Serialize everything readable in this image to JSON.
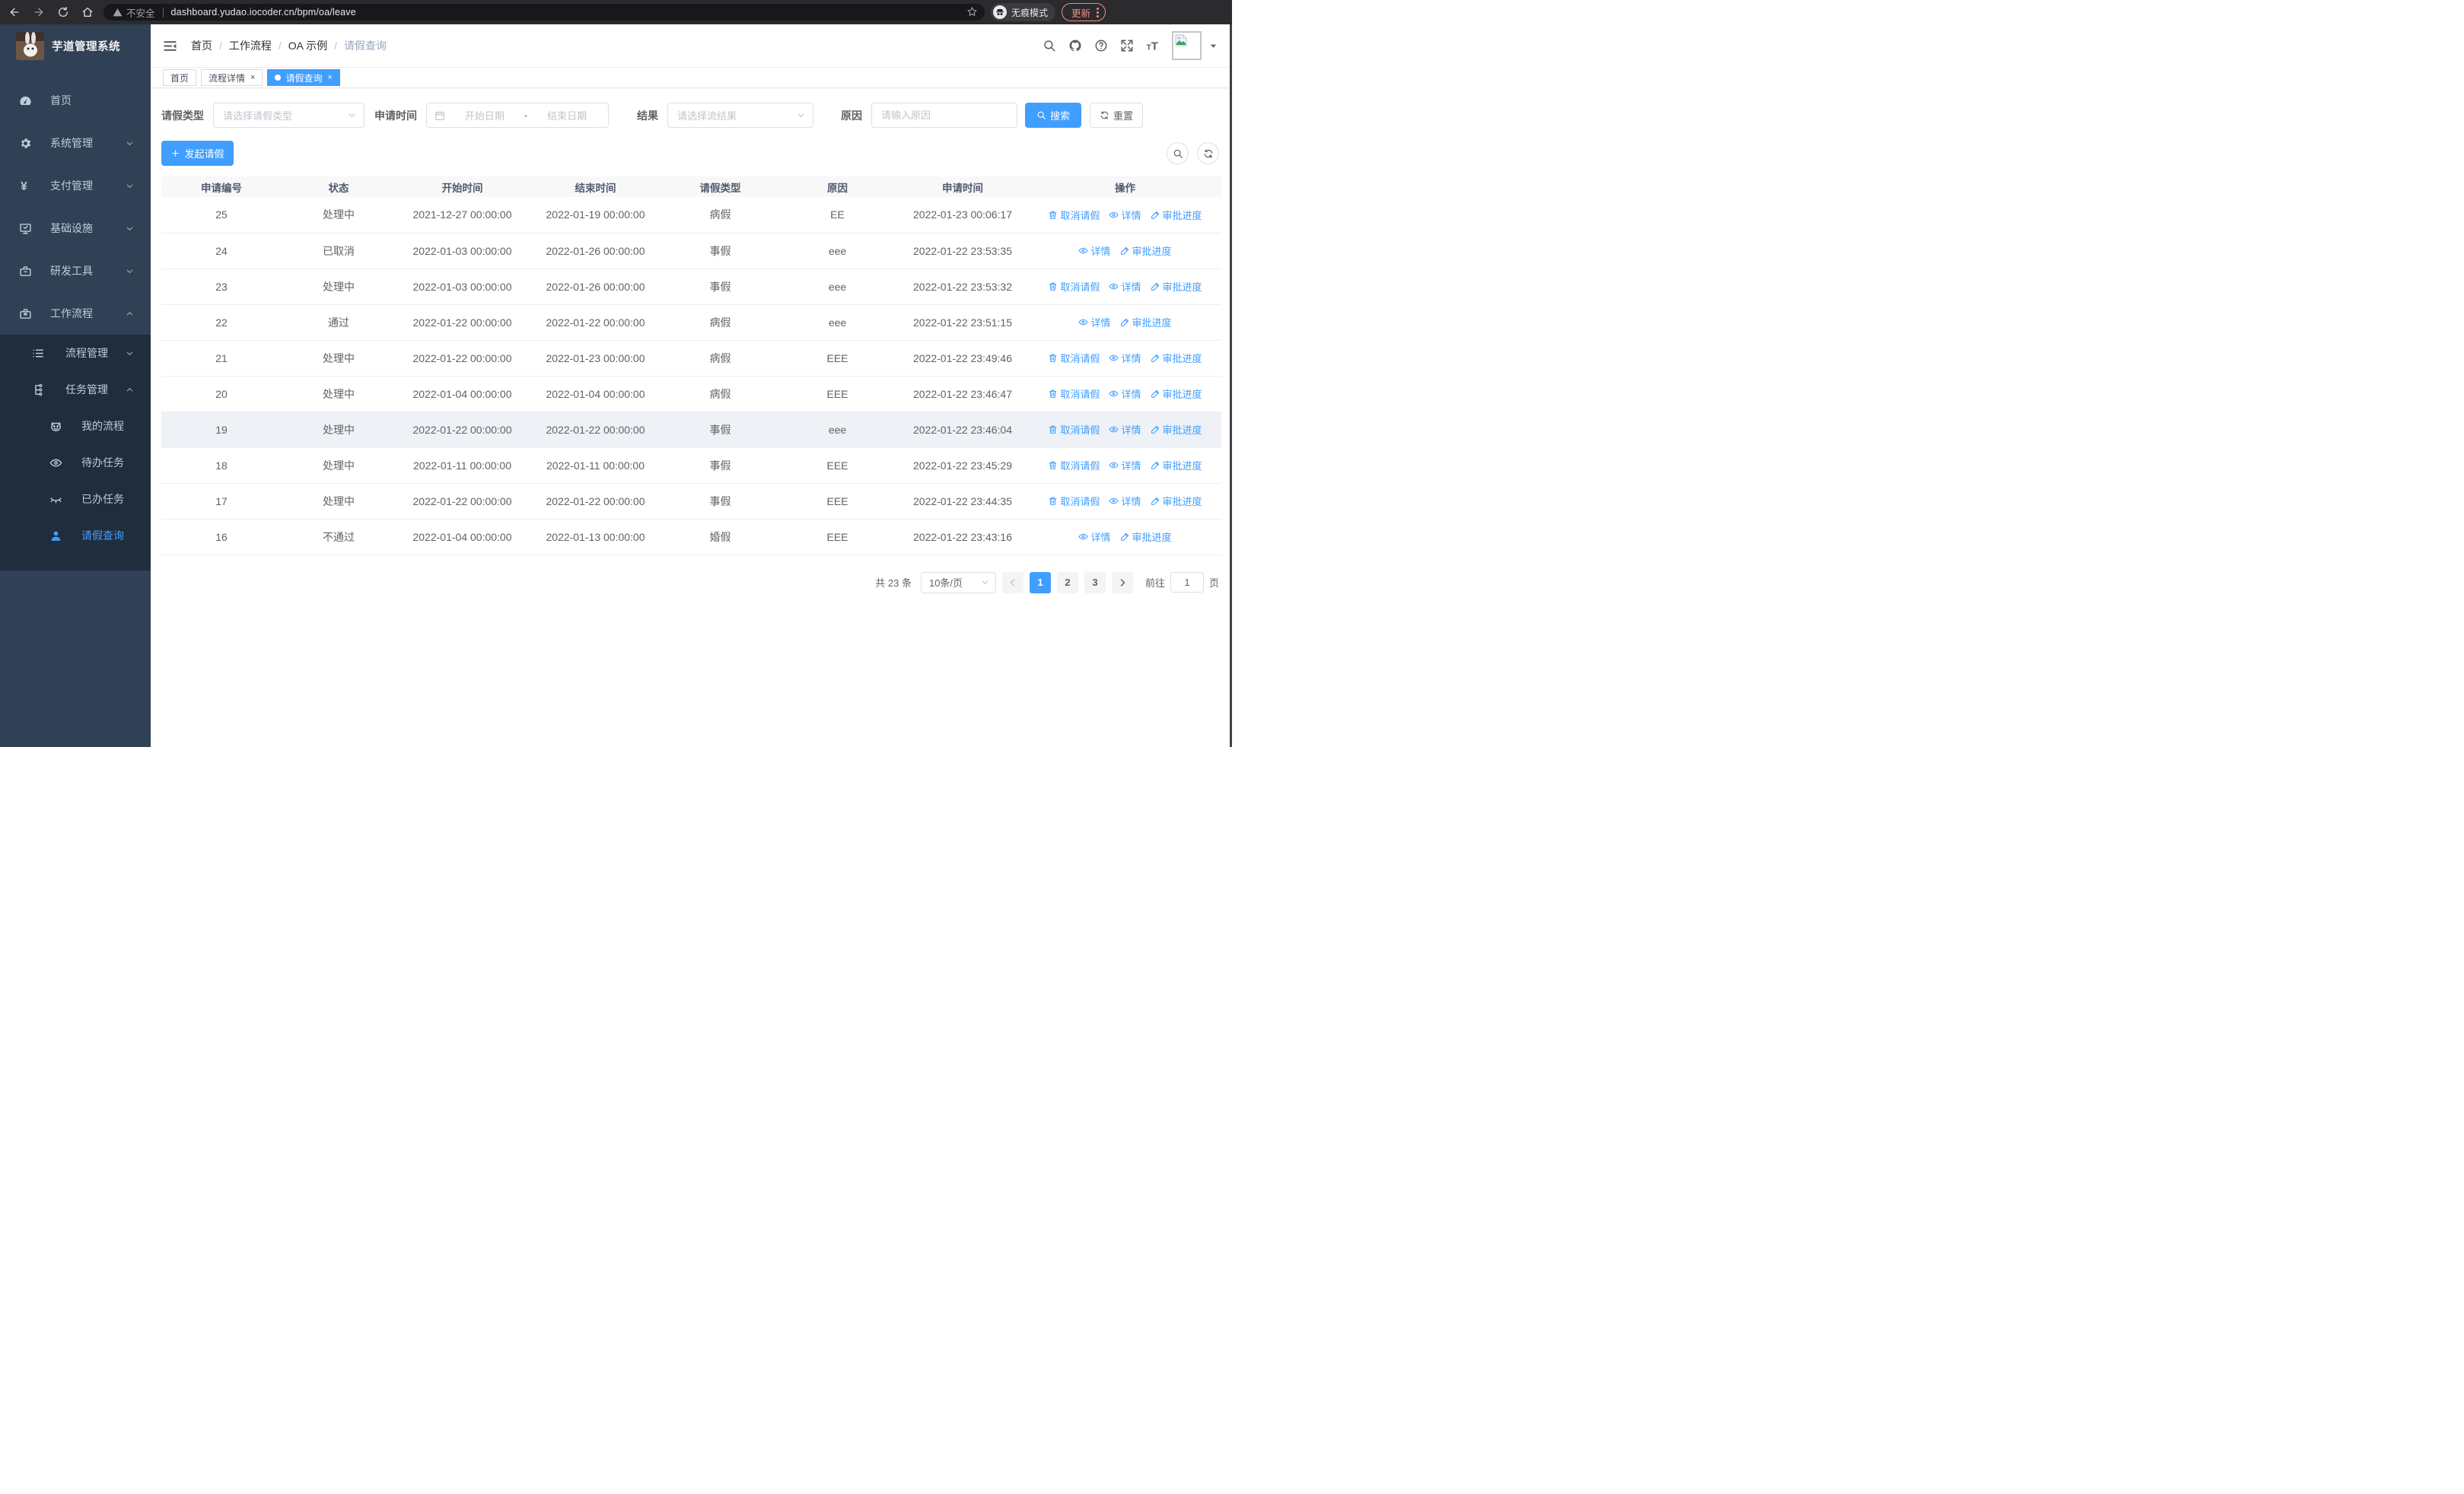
{
  "browser": {
    "security_label": "不安全",
    "url": "dashboard.yudao.iocoder.cn/bpm/oa/leave",
    "incognito_label": "无痕模式",
    "update_label": "更新"
  },
  "sidebar": {
    "title": "芋道管理系统",
    "items": [
      {
        "label": "首页"
      },
      {
        "label": "系统管理"
      },
      {
        "label": "支付管理"
      },
      {
        "label": "基础设施"
      },
      {
        "label": "研发工具"
      },
      {
        "label": "工作流程"
      },
      {
        "label": "流程管理"
      },
      {
        "label": "任务管理"
      },
      {
        "label": "我的流程"
      },
      {
        "label": "待办任务"
      },
      {
        "label": "已办任务"
      },
      {
        "label": "请假查询"
      }
    ]
  },
  "breadcrumb": {
    "separator": "/",
    "items": [
      "首页",
      "工作流程",
      "OA 示例",
      "请假查询"
    ]
  },
  "tabs": [
    {
      "label": "首页"
    },
    {
      "label": "流程详情"
    },
    {
      "label": "请假查询"
    }
  ],
  "tab_close": "×",
  "filters": {
    "leave_type_label": "请假类型",
    "leave_type_placeholder": "请选择请假类型",
    "apply_time_label": "申请时间",
    "start_placeholder": "开始日期",
    "range_separator": "-",
    "end_placeholder": "结束日期",
    "result_label": "结果",
    "result_placeholder": "请选择流结果",
    "reason_label": "原因",
    "reason_placeholder": "请输入原因",
    "search_label": "搜索",
    "reset_label": "重置"
  },
  "toolbar": {
    "create_label": "发起请假"
  },
  "table": {
    "headers": [
      "申请编号",
      "状态",
      "开始时间",
      "结束时间",
      "请假类型",
      "原因",
      "申请时间",
      "操作"
    ],
    "action_labels": {
      "cancel": "取消请假",
      "detail": "详情",
      "progress": "审批进度"
    },
    "rows": [
      {
        "id": "25",
        "status": "处理中",
        "start": "2021-12-27 00:00:00",
        "end": "2022-01-19 00:00:00",
        "type": "病假",
        "reason": "EE",
        "time": "2022-01-23 00:06:17",
        "actions": [
          "cancel",
          "detail",
          "progress"
        ],
        "highlight": false
      },
      {
        "id": "24",
        "status": "已取消",
        "start": "2022-01-03 00:00:00",
        "end": "2022-01-26 00:00:00",
        "type": "事假",
        "reason": "eee",
        "time": "2022-01-22 23:53:35",
        "actions": [
          "detail",
          "progress"
        ],
        "highlight": false
      },
      {
        "id": "23",
        "status": "处理中",
        "start": "2022-01-03 00:00:00",
        "end": "2022-01-26 00:00:00",
        "type": "事假",
        "reason": "eee",
        "time": "2022-01-22 23:53:32",
        "actions": [
          "cancel",
          "detail",
          "progress"
        ],
        "highlight": false
      },
      {
        "id": "22",
        "status": "通过",
        "start": "2022-01-22 00:00:00",
        "end": "2022-01-22 00:00:00",
        "type": "病假",
        "reason": "eee",
        "time": "2022-01-22 23:51:15",
        "actions": [
          "detail",
          "progress"
        ],
        "highlight": false
      },
      {
        "id": "21",
        "status": "处理中",
        "start": "2022-01-22 00:00:00",
        "end": "2022-01-23 00:00:00",
        "type": "病假",
        "reason": "EEE",
        "time": "2022-01-22 23:49:46",
        "actions": [
          "cancel",
          "detail",
          "progress"
        ],
        "highlight": false
      },
      {
        "id": "20",
        "status": "处理中",
        "start": "2022-01-04 00:00:00",
        "end": "2022-01-04 00:00:00",
        "type": "病假",
        "reason": "EEE",
        "time": "2022-01-22 23:46:47",
        "actions": [
          "cancel",
          "detail",
          "progress"
        ],
        "highlight": false
      },
      {
        "id": "19",
        "status": "处理中",
        "start": "2022-01-22 00:00:00",
        "end": "2022-01-22 00:00:00",
        "type": "事假",
        "reason": "eee",
        "time": "2022-01-22 23:46:04",
        "actions": [
          "cancel",
          "detail",
          "progress"
        ],
        "highlight": true
      },
      {
        "id": "18",
        "status": "处理中",
        "start": "2022-01-11 00:00:00",
        "end": "2022-01-11 00:00:00",
        "type": "事假",
        "reason": "EEE",
        "time": "2022-01-22 23:45:29",
        "actions": [
          "cancel",
          "detail",
          "progress"
        ],
        "highlight": false
      },
      {
        "id": "17",
        "status": "处理中",
        "start": "2022-01-22 00:00:00",
        "end": "2022-01-22 00:00:00",
        "type": "事假",
        "reason": "EEE",
        "time": "2022-01-22 23:44:35",
        "actions": [
          "cancel",
          "detail",
          "progress"
        ],
        "highlight": false
      },
      {
        "id": "16",
        "status": "不通过",
        "start": "2022-01-04 00:00:00",
        "end": "2022-01-13 00:00:00",
        "type": "婚假",
        "reason": "EEE",
        "time": "2022-01-22 23:43:16",
        "actions": [
          "detail",
          "progress"
        ],
        "highlight": false
      }
    ]
  },
  "pagination": {
    "total": "共 23 条",
    "page_size": "10条/页",
    "pages": [
      1,
      2,
      3
    ],
    "active_page": 1,
    "goto_label": "前往",
    "goto_value": "1",
    "goto_unit": "页"
  },
  "colors": {
    "accent": "#409eff",
    "sidebar_bg": "#304156",
    "submenu_bg": "#1f2d3d",
    "table_header_bg": "#f8f8f9",
    "update_badge": "#f28b82"
  }
}
